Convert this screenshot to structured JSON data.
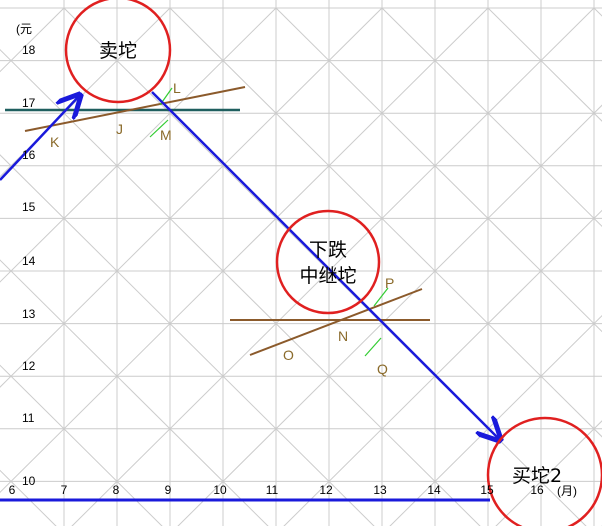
{
  "y_axis": {
    "unit": "(元",
    "labels": [
      "18",
      "17",
      "16",
      "15",
      "14",
      "13",
      "12",
      "11",
      "10"
    ]
  },
  "x_axis": {
    "unit": "(月)",
    "labels": [
      "6",
      "7",
      "8",
      "9",
      "10",
      "11",
      "12",
      "13",
      "14",
      "15",
      "16"
    ]
  },
  "circles": [
    {
      "lines": [
        "卖坨"
      ]
    },
    {
      "lines": [
        "下跌",
        "中继坨"
      ]
    },
    {
      "lines": [
        "买坨2"
      ]
    }
  ],
  "points": [
    "K",
    "J",
    "L",
    "M",
    "O",
    "N",
    "P",
    "Q"
  ]
}
